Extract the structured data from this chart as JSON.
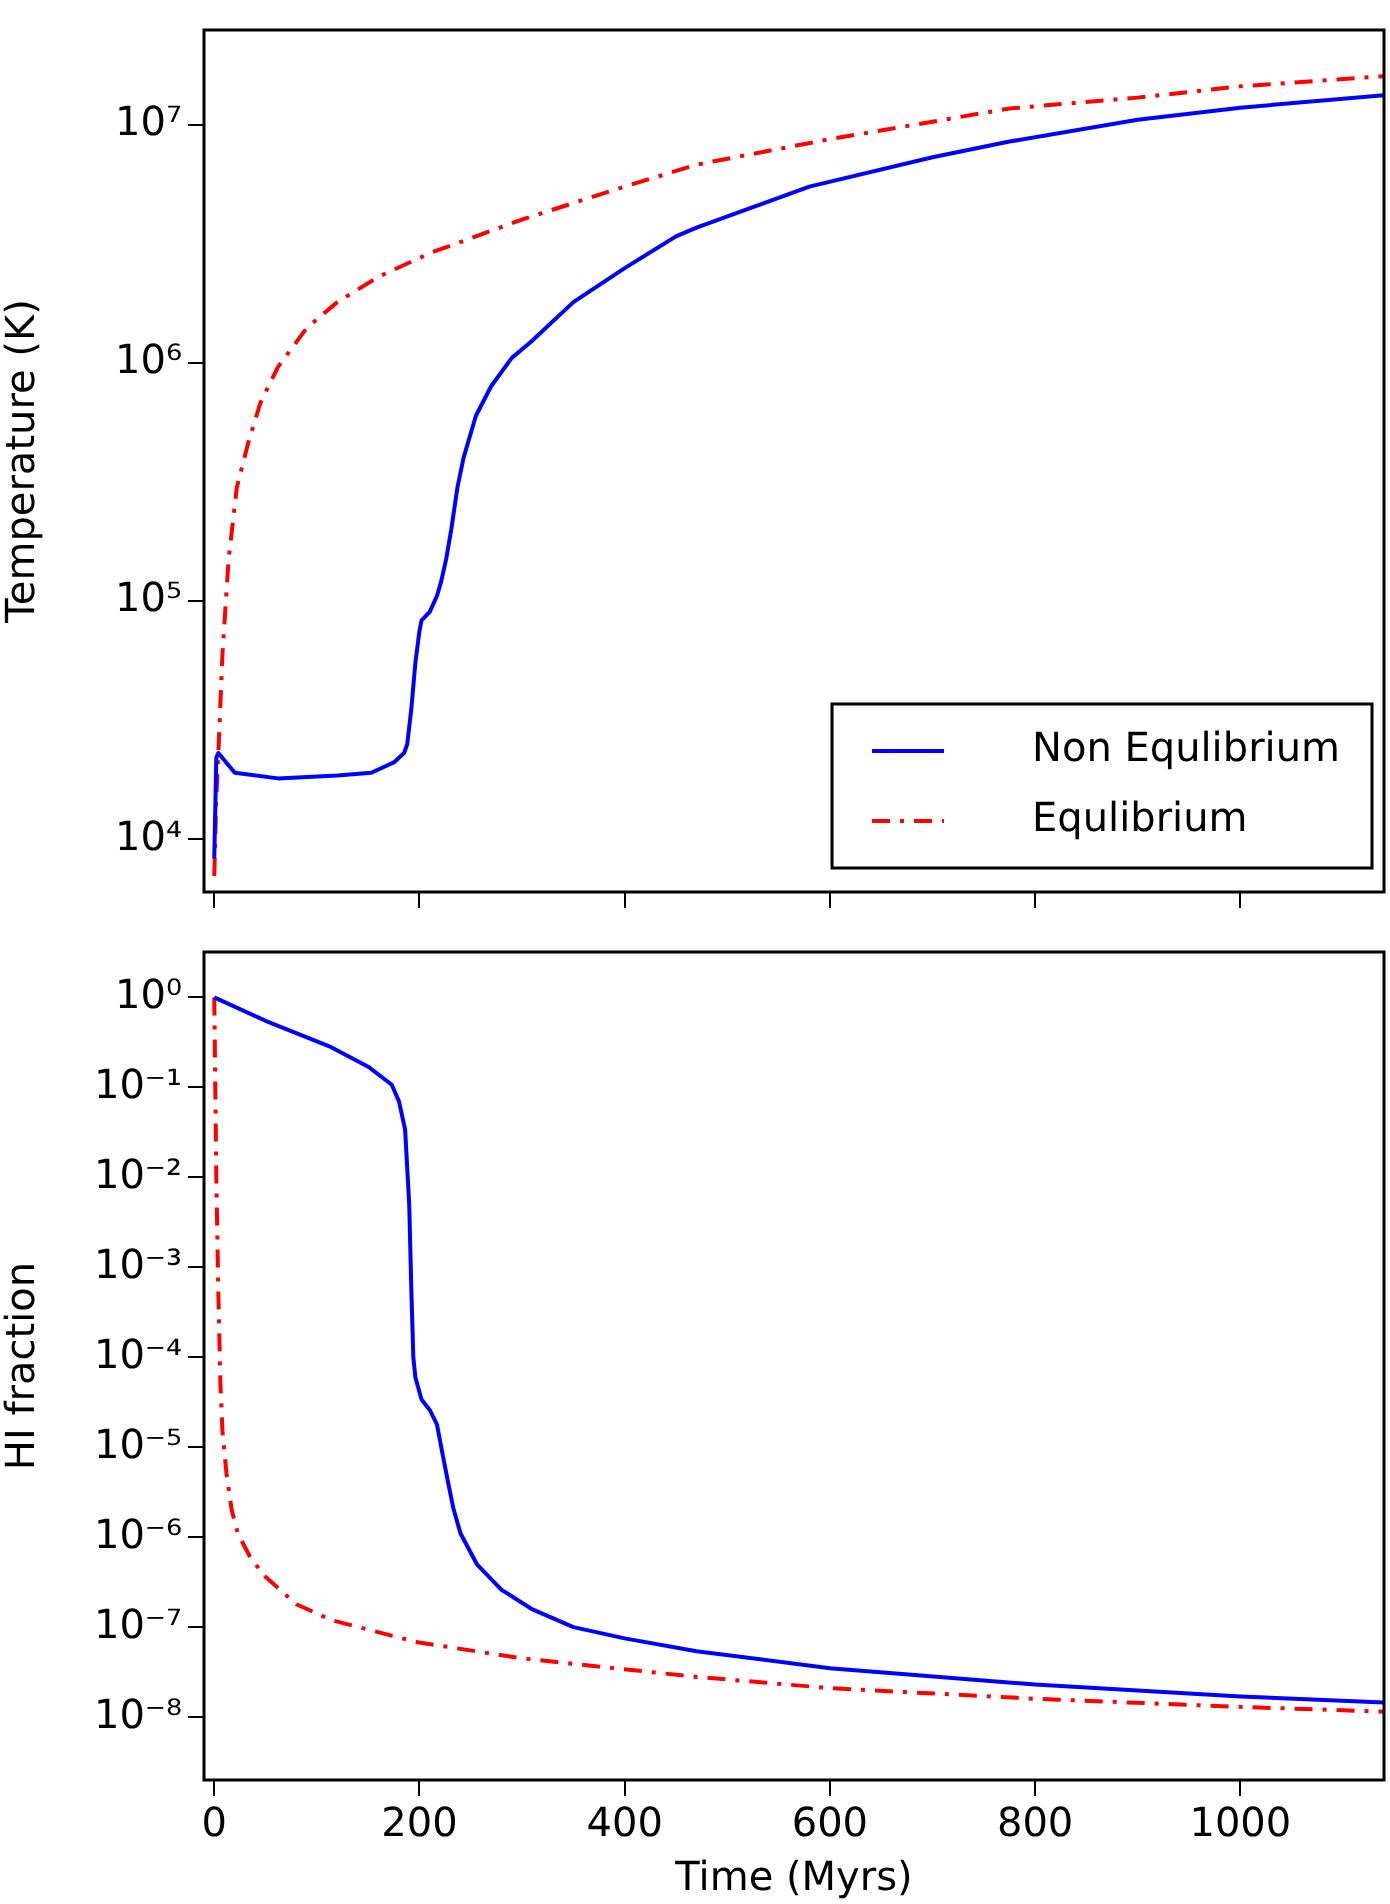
{
  "chart_data": [
    {
      "type": "line",
      "ylabel": "Temperature (K)",
      "xlim": [
        -10,
        1140
      ],
      "xticks": [
        0,
        200,
        400,
        600,
        800,
        1000
      ],
      "ylim": [
        6000,
        25000000
      ],
      "yticks": [
        {
          "value": 10000,
          "label": "10⁴"
        },
        {
          "value": 100000,
          "label": "10⁵"
        },
        {
          "value": 1000000,
          "label": "10⁶"
        },
        {
          "value": 10000000,
          "label": "10⁷"
        }
      ],
      "log": "y",
      "grid": false,
      "legend": "bottom right",
      "tick_labels": "y",
      "marker": "none",
      "series": [
        {
          "name": "Non Equlibrium",
          "color": "#0000ff",
          "line_style": "solid",
          "x": [
            0,
            2,
            4,
            20,
            62,
            120,
            153,
            175,
            185,
            188,
            192,
            196,
            200,
            202,
            210,
            217,
            221,
            226,
            231,
            237,
            243,
            255,
            270,
            290,
            309,
            350,
            400,
            450,
            470,
            580,
            700,
            775,
            900,
            1000,
            1140
          ],
          "values": [
            8300,
            22000,
            23000,
            19000,
            18000,
            18500,
            19000,
            21000,
            23000,
            25000,
            35000,
            55000,
            75000,
            83000,
            90000,
            105000,
            120000,
            150000,
            200000,
            300000,
            400000,
            600000,
            800000,
            1050000,
            1230000,
            1800000,
            2500000,
            3400000,
            3700000,
            5500000,
            7300000,
            8500000,
            10500000,
            11800000,
            13300000
          ]
        },
        {
          "name": "Equlibrium",
          "color": "#ff0000",
          "line_style": "dashed",
          "x": [
            0,
            2,
            4,
            8,
            14,
            22,
            33,
            45,
            62,
            90,
            120,
            160,
            211,
            300,
            400,
            470,
            600,
            775,
            900,
            1000,
            1140
          ],
          "values": [
            7000,
            15000,
            23000,
            60000,
            150000,
            300000,
            460000,
            680000,
            960000,
            1400000,
            1800000,
            2300000,
            2900000,
            4000000,
            5500000,
            6800000,
            8700000,
            11700000,
            13000000,
            14500000,
            16000000
          ]
        }
      ]
    },
    {
      "type": "line",
      "xlabel": "Time (Myrs)",
      "ylabel": "HI fraction",
      "xlim": [
        -10,
        1140
      ],
      "xticks": [
        0,
        200,
        400,
        600,
        800,
        1000
      ],
      "ylim": [
        2e-09,
        3.2
      ],
      "yticks": [
        {
          "value": 1,
          "label": "10⁰"
        },
        {
          "value": 0.1,
          "label": "10⁻¹"
        },
        {
          "value": 0.01,
          "label": "10⁻²"
        },
        {
          "value": 0.001,
          "label": "10⁻³"
        },
        {
          "value": 0.0001,
          "label": "10⁻⁴"
        },
        {
          "value": 1e-05,
          "label": "10⁻⁵"
        },
        {
          "value": 1e-06,
          "label": "10⁻⁶"
        },
        {
          "value": 1e-07,
          "label": "10⁻⁷"
        },
        {
          "value": 1e-08,
          "label": "10⁻⁸"
        }
      ],
      "log": "y",
      "grid": false,
      "marker": "none",
      "series": [
        {
          "color": "#0000ff",
          "line_style": "solid",
          "x": [
            0,
            50,
            114,
            150,
            173,
            180,
            186,
            190,
            192,
            194,
            196,
            202,
            210,
            217,
            222,
            228,
            233,
            240,
            256,
            280,
            309,
            350,
            400,
            470,
            600,
            800,
            1000,
            1140
          ],
          "values": [
            1,
            0.55,
            0.28,
            0.17,
            0.107,
            0.07,
            0.034,
            0.005,
            0.0006,
            0.0001,
            6e-05,
            3.4e-05,
            2.6e-05,
            1.8e-05,
            9e-06,
            4e-06,
            2.1e-06,
            1.1e-06,
            5e-07,
            2.6e-07,
            1.6e-07,
            1e-07,
            7.5e-08,
            5.4e-08,
            3.5e-08,
            2.3e-08,
            1.7e-08,
            1.45e-08
          ]
        },
        {
          "color": "#ff0000",
          "line_style": "dashed",
          "x": [
            0,
            1,
            2,
            4,
            6,
            8,
            12,
            17,
            23,
            35,
            49,
            80,
            114,
            198,
            300,
            470,
            600,
            800,
            1000,
            1140
          ],
          "values": [
            1,
            0.1,
            0.01,
            0.0005,
            5e-05,
            1.5e-05,
            5e-06,
            2e-06,
            1.1e-06,
            6e-07,
            3.7e-07,
            1.8e-07,
            1.2e-07,
            6.8e-08,
            4.5e-08,
            2.8e-08,
            2.1e-08,
            1.6e-08,
            1.3e-08,
            1.15e-08
          ]
        }
      ]
    }
  ]
}
